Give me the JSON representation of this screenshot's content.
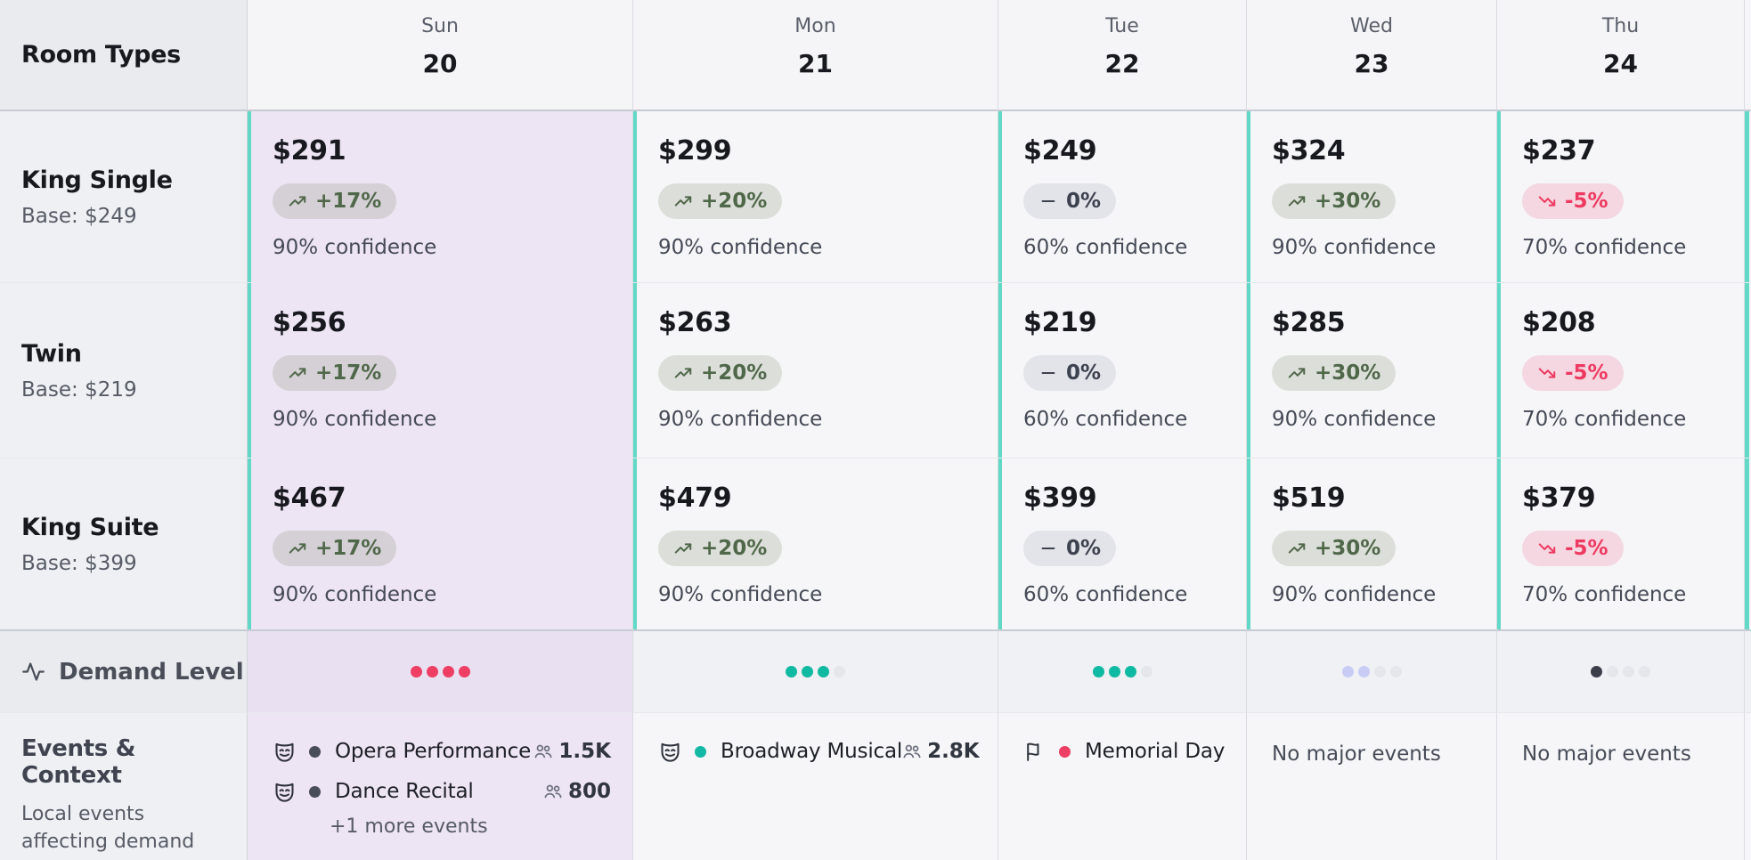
{
  "header": {
    "corner": "Room Types",
    "days": [
      {
        "name": "Sun",
        "date": "20",
        "highlighted": true
      },
      {
        "name": "Mon",
        "date": "21",
        "highlighted": false
      },
      {
        "name": "Tue",
        "date": "22",
        "highlighted": false
      },
      {
        "name": "Wed",
        "date": "23",
        "highlighted": false
      },
      {
        "name": "Thu",
        "date": "24",
        "highlighted": false
      }
    ]
  },
  "rooms": [
    {
      "name": "King Single",
      "base": "Base: $249",
      "cells": [
        {
          "price": "$291",
          "change": "+17%",
          "trend": "up",
          "confidence": "90% confidence"
        },
        {
          "price": "$299",
          "change": "+20%",
          "trend": "up",
          "confidence": "90% confidence"
        },
        {
          "price": "$249",
          "change": "0%",
          "trend": "flat",
          "confidence": "60% confidence"
        },
        {
          "price": "$324",
          "change": "+30%",
          "trend": "up",
          "confidence": "90% confidence"
        },
        {
          "price": "$237",
          "change": "-5%",
          "trend": "down",
          "confidence": "70% confidence"
        }
      ]
    },
    {
      "name": "Twin",
      "base": "Base: $219",
      "cells": [
        {
          "price": "$256",
          "change": "+17%",
          "trend": "up",
          "confidence": "90% confidence"
        },
        {
          "price": "$263",
          "change": "+20%",
          "trend": "up",
          "confidence": "90% confidence"
        },
        {
          "price": "$219",
          "change": "0%",
          "trend": "flat",
          "confidence": "60% confidence"
        },
        {
          "price": "$285",
          "change": "+30%",
          "trend": "up",
          "confidence": "90% confidence"
        },
        {
          "price": "$208",
          "change": "-5%",
          "trend": "down",
          "confidence": "70% confidence"
        }
      ]
    },
    {
      "name": "King Suite",
      "base": "Base: $399",
      "cells": [
        {
          "price": "$467",
          "change": "+17%",
          "trend": "up",
          "confidence": "90% confidence"
        },
        {
          "price": "$479",
          "change": "+20%",
          "trend": "up",
          "confidence": "90% confidence"
        },
        {
          "price": "$399",
          "change": "0%",
          "trend": "flat",
          "confidence": "60% confidence"
        },
        {
          "price": "$519",
          "change": "+30%",
          "trend": "up",
          "confidence": "90% confidence"
        },
        {
          "price": "$379",
          "change": "-5%",
          "trend": "down",
          "confidence": "70% confidence"
        }
      ]
    }
  ],
  "demand": {
    "label": "Demand Level",
    "levels": [
      {
        "filled": 4,
        "total": 4,
        "tone": "red"
      },
      {
        "filled": 3,
        "total": 4,
        "tone": "teal"
      },
      {
        "filled": 3,
        "total": 4,
        "tone": "teal"
      },
      {
        "filled": 2,
        "total": 4,
        "tone": "lavender"
      },
      {
        "filled": 1,
        "total": 4,
        "tone": "dark"
      }
    ]
  },
  "events": {
    "title": "Events & Context",
    "subtitle": "Local events affecting demand",
    "days": [
      {
        "items": [
          {
            "icon": "theater-mask",
            "dot": "dark",
            "name": "Opera Performance",
            "attendance": "1.5K"
          },
          {
            "icon": "theater-mask",
            "dot": "dark",
            "name": "Dance Recital",
            "attendance": "800"
          }
        ],
        "more": "+1 more events"
      },
      {
        "items": [
          {
            "icon": "theater-mask",
            "dot": "teal",
            "name": "Broadway Musical",
            "attendance": "2.8K"
          }
        ]
      },
      {
        "items": [
          {
            "icon": "flag",
            "dot": "red",
            "name": "Memorial Day"
          }
        ]
      },
      {
        "empty": "No major events"
      },
      {
        "empty": "No major events"
      }
    ]
  },
  "colors": {
    "accent_teal": "#62d9c6",
    "highlight_lavender": "#ede4f4",
    "badge_up_text": "#50684a",
    "badge_down_text": "#ee3960",
    "badge_flat_text": "#3d4250",
    "demand_red": "#ee3e63",
    "demand_teal": "#10b9a1",
    "demand_lavender": "#c8ccf5",
    "demand_dark": "#3b3f4a",
    "demand_empty": "#e4e6eb"
  }
}
